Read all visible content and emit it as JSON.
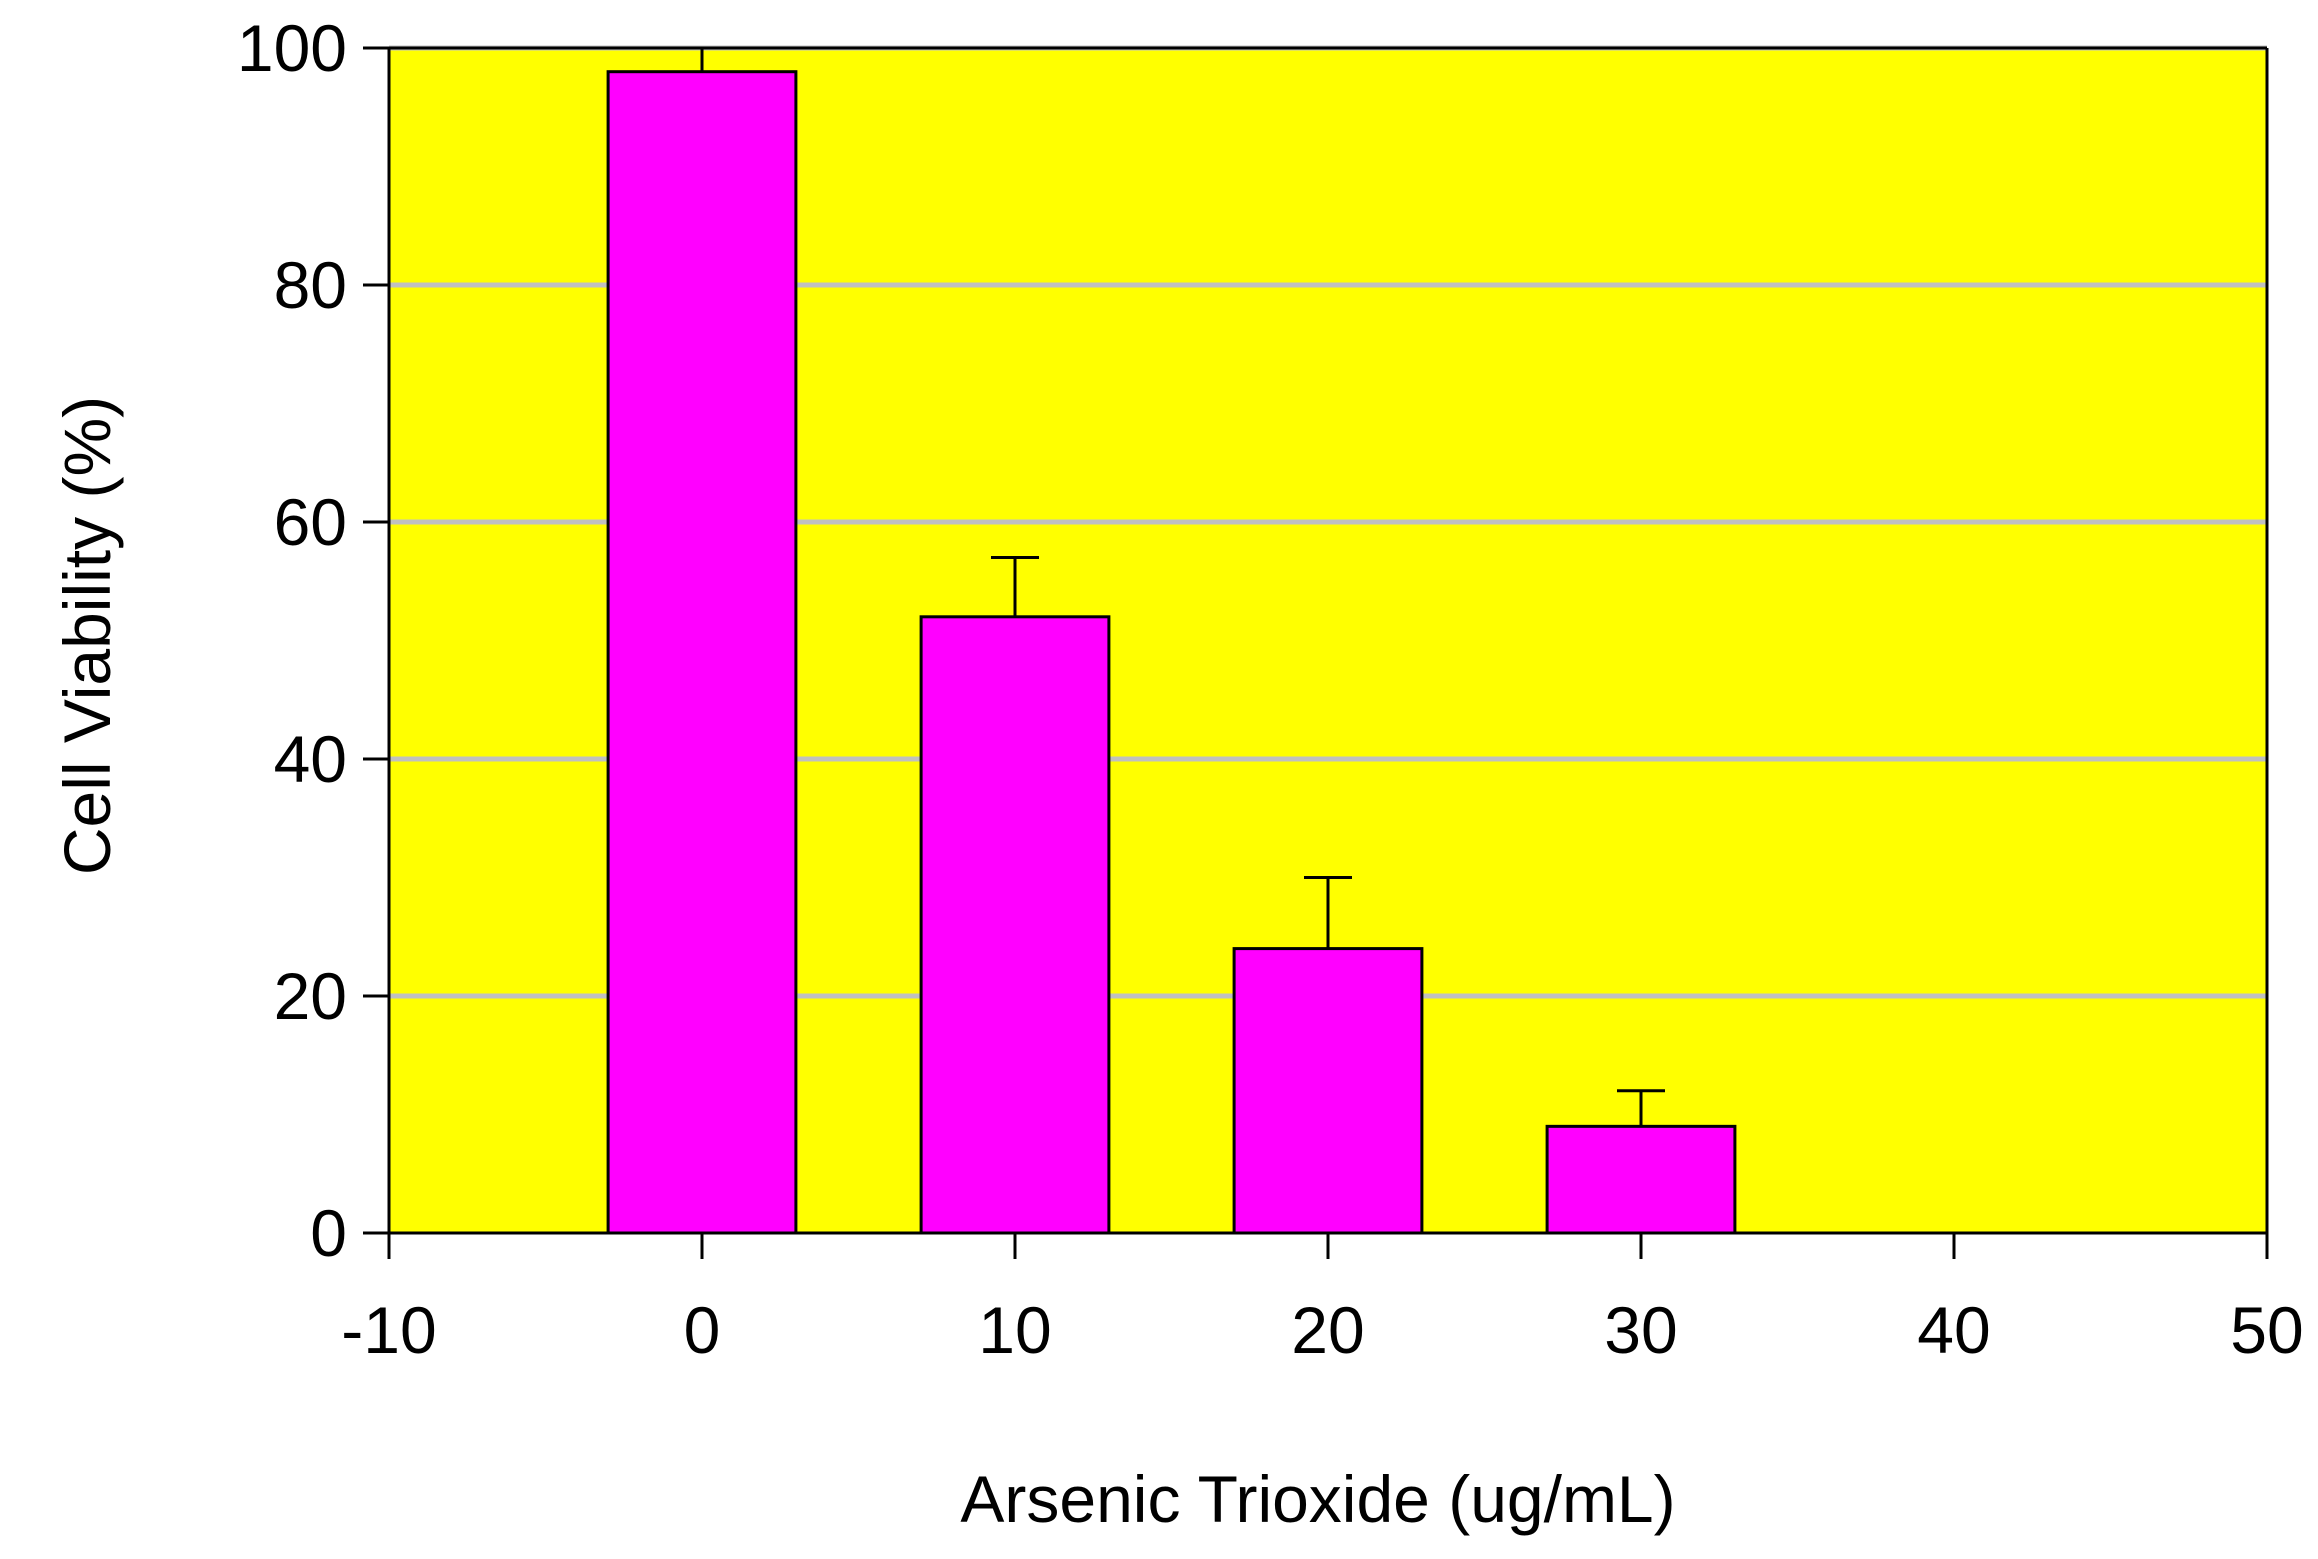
{
  "chart_data": {
    "type": "bar",
    "title": "",
    "xlabel": "Arsenic Trioxide (ug/mL)",
    "ylabel": "Cell Viability (%)",
    "x": [
      0,
      10,
      20,
      30
    ],
    "values": [
      98,
      52,
      24,
      9
    ],
    "errors": [
      3.5,
      5,
      6,
      3
    ],
    "bar_width": 6,
    "xlim": [
      -10,
      50
    ],
    "ylim": [
      0,
      100
    ],
    "xticks": [
      "-10",
      "0",
      "10",
      "20",
      "30",
      "40",
      "50"
    ],
    "xtick_values": [
      -10,
      0,
      10,
      20,
      30,
      40,
      50
    ],
    "yticks": [
      "0",
      "20",
      "40",
      "60",
      "80",
      "100"
    ],
    "ytick_values": [
      0,
      20,
      40,
      60,
      80,
      100
    ],
    "grid": "horizontal",
    "colors": {
      "plot_background": "#ffff00",
      "bar_fill": "#ff00ff",
      "gridline": "#c0c0c0",
      "axis": "#000000"
    }
  }
}
